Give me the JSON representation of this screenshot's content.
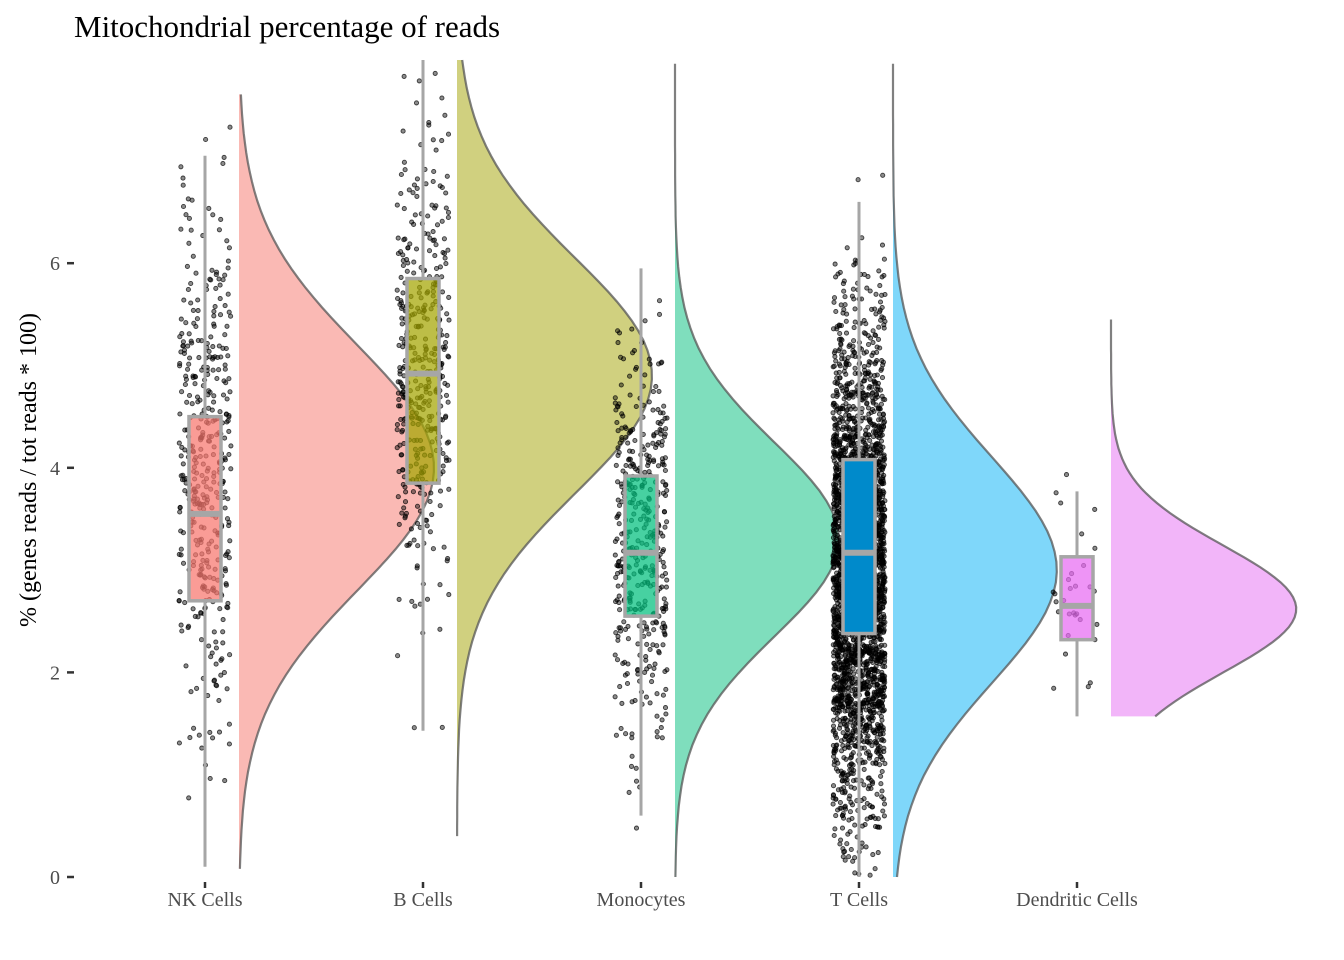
{
  "chart_data": {
    "type": "raincloud",
    "title": "Mitochondrial percentage of reads",
    "xlabel": "",
    "ylabel": "% (genes reads / tot reads * 100)",
    "ylim": [
      0,
      8
    ],
    "yticks": [
      0,
      2,
      4,
      6
    ],
    "ytick_labels": [
      "0",
      "2",
      "4",
      "6"
    ],
    "grid": false,
    "legend": "none",
    "categories": [
      "NK Cells",
      "B Cells",
      "Monocytes",
      "T Cells",
      "Dendritic Cells"
    ],
    "series": [
      {
        "name": "NK Cells",
        "color": "#F8766D",
        "violin_color": "#FAB9B4",
        "n_points": 420,
        "box": {
          "whisker_low": 0.1,
          "q1": 2.7,
          "median": 3.55,
          "q3": 4.5,
          "whisker_high": 7.05
        },
        "density": {
          "min": 0.08,
          "max": 7.65,
          "peak": 4.0,
          "sd": 1.2,
          "rel_width": 1.0
        },
        "outlier_range": [
          0.08,
          7.65
        ]
      },
      {
        "name": "B Cells",
        "color": "#A3A500",
        "violin_color": "#D0D07F",
        "n_points": 420,
        "box": {
          "whisker_low": 1.43,
          "q1": 3.85,
          "median": 4.92,
          "q3": 5.85,
          "whisker_high": 8.0
        },
        "density": {
          "min": 0.4,
          "max": 8.0,
          "peak": 4.9,
          "sd": 1.15,
          "rel_width": 1.0
        },
        "outlier_range": [
          0.4,
          8.0
        ]
      },
      {
        "name": "Monocytes",
        "color": "#00BF7D",
        "violin_color": "#7FDEBD",
        "n_points": 420,
        "box": {
          "whisker_low": 0.6,
          "q1": 2.55,
          "median": 3.17,
          "q3": 3.92,
          "whisker_high": 5.95
        },
        "density": {
          "min": 0.0,
          "max": 7.95,
          "peak": 3.3,
          "sd": 0.95,
          "rel_width": 0.84
        },
        "outlier_range": [
          0.0,
          7.95
        ]
      },
      {
        "name": "T Cells",
        "color": "#00B0F6",
        "box_color": "#008ACB",
        "violin_color": "#7FD7FA",
        "n_points": 3000,
        "box": {
          "whisker_low": 0.0,
          "q1": 2.38,
          "median": 3.17,
          "q3": 4.08,
          "whisker_high": 6.6
        },
        "density": {
          "min": 0.0,
          "max": 7.95,
          "peak": 3.0,
          "sd": 1.1,
          "rel_width": 0.84
        },
        "outlier_range": [
          0.0,
          7.95
        ]
      },
      {
        "name": "Dendritic Cells",
        "color": "#E76BF3",
        "violin_color": "#F2B5F9",
        "n_points": 30,
        "box": {
          "whisker_low": 1.57,
          "q1": 2.32,
          "median": 2.65,
          "q3": 3.13,
          "whisker_high": 3.77
        },
        "density": {
          "min": 1.57,
          "max": 5.45,
          "peak": 2.62,
          "sd": 0.62,
          "rel_width": 0.95
        },
        "outlier_range": [
          1.57,
          5.45
        ]
      }
    ]
  }
}
